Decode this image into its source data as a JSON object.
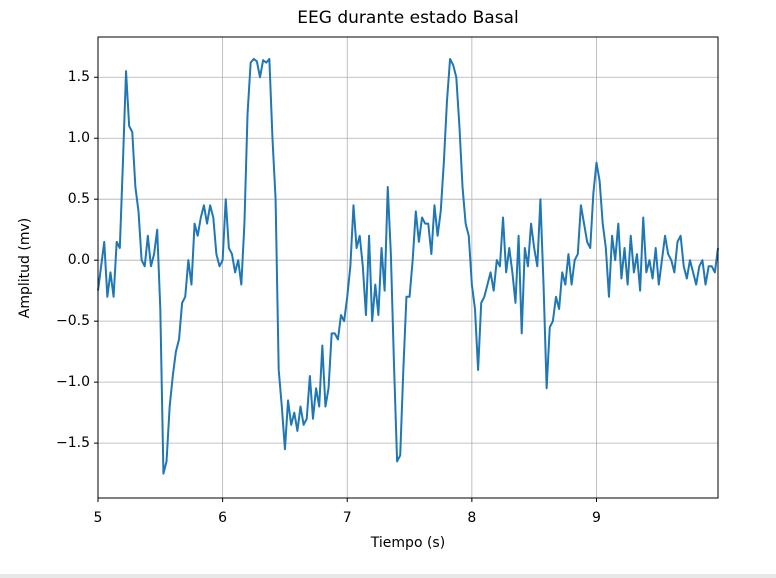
{
  "chart_data": {
    "type": "line",
    "title": "EEG durante estado Basal",
    "xlabel": "Tiempo (s)",
    "ylabel": "Amplitud (mv)",
    "color": "#1f77b4",
    "grid": true,
    "xlim": [
      5,
      9.975
    ],
    "xticks": [
      5,
      6,
      7,
      8,
      9
    ],
    "ylim": [
      -1.95,
      1.83
    ],
    "yticks": [
      {
        "value": -1.5,
        "label": "−1.5"
      },
      {
        "value": -1.0,
        "label": "−1.0"
      },
      {
        "value": -0.5,
        "label": "−0.5"
      },
      {
        "value": 0,
        "label": "0.0"
      },
      0.5,
      {
        "value": 1.0,
        "label": "1.0"
      },
      1.5
    ],
    "x": [
      5.0,
      5.025,
      5.05,
      5.075,
      5.1,
      5.125,
      5.15,
      5.175,
      5.2,
      5.225,
      5.25,
      5.275,
      5.3,
      5.325,
      5.35,
      5.375,
      5.4,
      5.425,
      5.45,
      5.475,
      5.5,
      5.525,
      5.55,
      5.575,
      5.6,
      5.625,
      5.65,
      5.675,
      5.7,
      5.725,
      5.75,
      5.775,
      5.8,
      5.825,
      5.85,
      5.875,
      5.9,
      5.925,
      5.95,
      5.975,
      6.0,
      6.025,
      6.05,
      6.075,
      6.1,
      6.125,
      6.15,
      6.175,
      6.2,
      6.225,
      6.25,
      6.275,
      6.3,
      6.325,
      6.35,
      6.375,
      6.4,
      6.425,
      6.45,
      6.475,
      6.5,
      6.525,
      6.55,
      6.575,
      6.6,
      6.625,
      6.65,
      6.675,
      6.7,
      6.725,
      6.75,
      6.775,
      6.8,
      6.825,
      6.85,
      6.875,
      6.9,
      6.925,
      6.95,
      6.975,
      7.0,
      7.025,
      7.05,
      7.075,
      7.1,
      7.125,
      7.15,
      7.175,
      7.2,
      7.225,
      7.25,
      7.275,
      7.3,
      7.325,
      7.35,
      7.375,
      7.4,
      7.425,
      7.45,
      7.475,
      7.5,
      7.525,
      7.55,
      7.575,
      7.6,
      7.625,
      7.65,
      7.675,
      7.7,
      7.725,
      7.75,
      7.775,
      7.8,
      7.825,
      7.85,
      7.875,
      7.9,
      7.925,
      7.95,
      7.975,
      8.0,
      8.025,
      8.05,
      8.075,
      8.1,
      8.125,
      8.15,
      8.175,
      8.2,
      8.225,
      8.25,
      8.275,
      8.3,
      8.325,
      8.35,
      8.375,
      8.4,
      8.425,
      8.45,
      8.475,
      8.5,
      8.525,
      8.55,
      8.575,
      8.6,
      8.625,
      8.65,
      8.675,
      8.7,
      8.725,
      8.75,
      8.775,
      8.8,
      8.825,
      8.85,
      8.875,
      8.9,
      8.925,
      8.95,
      8.975,
      9.0,
      9.025,
      9.05,
      9.075,
      9.1,
      9.125,
      9.15,
      9.175,
      9.2,
      9.225,
      9.25,
      9.275,
      9.3,
      9.325,
      9.35,
      9.375,
      9.4,
      9.425,
      9.45,
      9.475,
      9.5,
      9.525,
      9.55,
      9.575,
      9.6,
      9.625,
      9.65,
      9.675,
      9.7,
      9.725,
      9.75,
      9.775,
      9.8,
      9.825,
      9.85,
      9.875,
      9.9,
      9.925,
      9.95,
      9.975
    ],
    "values": [
      -0.25,
      -0.05,
      0.15,
      -0.3,
      -0.1,
      -0.3,
      0.15,
      0.1,
      0.8,
      1.55,
      1.1,
      1.05,
      0.6,
      0.4,
      0.0,
      -0.05,
      0.2,
      -0.05,
      0.05,
      0.25,
      -0.4,
      -1.75,
      -1.65,
      -1.2,
      -0.95,
      -0.75,
      -0.65,
      -0.35,
      -0.3,
      0.0,
      -0.2,
      0.3,
      0.2,
      0.35,
      0.45,
      0.3,
      0.45,
      0.35,
      0.05,
      -0.05,
      0.0,
      0.5,
      0.1,
      0.05,
      -0.1,
      0.0,
      -0.2,
      0.3,
      1.2,
      1.62,
      1.65,
      1.63,
      1.5,
      1.64,
      1.62,
      1.65,
      1.0,
      0.5,
      -0.9,
      -1.2,
      -1.55,
      -1.15,
      -1.35,
      -1.25,
      -1.4,
      -1.2,
      -1.35,
      -1.3,
      -0.95,
      -1.3,
      -1.05,
      -1.2,
      -0.7,
      -1.2,
      -1.05,
      -0.6,
      -0.6,
      -0.65,
      -0.45,
      -0.5,
      -0.3,
      -0.05,
      0.45,
      0.1,
      0.2,
      -0.05,
      -0.45,
      0.2,
      -0.5,
      -0.2,
      -0.45,
      0.1,
      -0.25,
      0.6,
      0.05,
      -0.85,
      -1.65,
      -1.6,
      -0.9,
      -0.3,
      -0.3,
      0.0,
      0.4,
      0.15,
      0.35,
      0.3,
      0.3,
      0.05,
      0.45,
      0.2,
      0.4,
      0.8,
      1.3,
      1.65,
      1.6,
      1.5,
      1.1,
      0.6,
      0.3,
      0.2,
      -0.2,
      -0.4,
      -0.9,
      -0.35,
      -0.3,
      -0.2,
      -0.1,
      -0.25,
      0.0,
      -0.05,
      0.35,
      -0.1,
      0.1,
      -0.1,
      -0.35,
      0.2,
      -0.6,
      0.1,
      -0.05,
      0.3,
      0.1,
      -0.05,
      0.5,
      -0.2,
      -1.05,
      -0.55,
      -0.5,
      -0.3,
      -0.4,
      -0.1,
      -0.2,
      0.05,
      -0.2,
      0.0,
      0.05,
      0.45,
      0.3,
      0.15,
      0.1,
      0.55,
      0.8,
      0.65,
      0.3,
      0.1,
      -0.3,
      0.2,
      0.0,
      0.3,
      -0.15,
      0.1,
      -0.2,
      0.2,
      -0.1,
      0.05,
      -0.25,
      0.35,
      -0.1,
      0.0,
      -0.15,
      0.1,
      -0.2,
      0.0,
      0.2,
      0.05,
      0.0,
      -0.1,
      0.15,
      0.2,
      -0.05,
      -0.15,
      0.0,
      -0.1,
      -0.2,
      -0.05,
      0.0,
      -0.2,
      -0.05,
      -0.05,
      -0.1,
      0.1
    ]
  }
}
